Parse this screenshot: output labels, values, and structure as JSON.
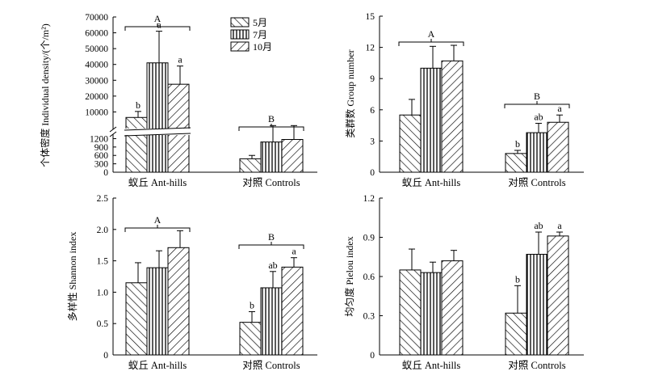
{
  "chart_data": [
    {
      "id": "density",
      "type": "bar",
      "ylabel": "个体密度 Individual density/(个/m²)",
      "categories": [
        "蚁丘 Ant-hills",
        "对照 Controls"
      ],
      "axis_break": true,
      "lower_ticks": [
        "0",
        "300",
        "600",
        "900",
        "1200"
      ],
      "upper_ticks": [
        "10000",
        "20000",
        "30000",
        "40000",
        "50000",
        "60000",
        "70000"
      ],
      "lower_range": [
        0,
        1300
      ],
      "upper_range": [
        0,
        70000
      ],
      "series": [
        {
          "name": "5月",
          "values": [
            6500,
            480
          ],
          "errors": [
            3800,
            120
          ],
          "letters": [
            "b",
            ""
          ]
        },
        {
          "name": "7月",
          "values": [
            41000,
            1080
          ],
          "errors": [
            20000,
            300
          ],
          "letters": [
            "a",
            ""
          ]
        },
        {
          "name": "10月",
          "values": [
            27500,
            1170
          ],
          "errors": [
            11500,
            200
          ],
          "letters": [
            "a",
            ""
          ]
        }
      ],
      "groups": [
        {
          "label": "A",
          "category": 0
        },
        {
          "label": "B",
          "category": 1
        }
      ],
      "legend": {
        "position": "top-center",
        "entries": [
          "5月",
          "7月",
          "10月"
        ]
      }
    },
    {
      "id": "groups",
      "type": "bar",
      "ylabel": "类群数 Group number",
      "categories": [
        "蚁丘 Ant-hills",
        "对照 Controls"
      ],
      "ylim": [
        0,
        15
      ],
      "ticks": [
        "0",
        "3",
        "6",
        "9",
        "12",
        "15"
      ],
      "series": [
        {
          "name": "5月",
          "values": [
            5.5,
            1.8
          ],
          "errors": [
            1.5,
            0.3
          ],
          "letters": [
            "",
            "b"
          ]
        },
        {
          "name": "7月",
          "values": [
            10.0,
            3.8
          ],
          "errors": [
            2.1,
            0.9
          ],
          "letters": [
            "",
            "ab"
          ]
        },
        {
          "name": "10月",
          "values": [
            10.7,
            4.8
          ],
          "errors": [
            1.5,
            0.7
          ],
          "letters": [
            "",
            "a"
          ]
        }
      ],
      "groups": [
        {
          "label": "A",
          "category": 0
        },
        {
          "label": "B",
          "category": 1
        }
      ]
    },
    {
      "id": "shannon",
      "type": "bar",
      "ylabel": "多样性 Shannon index",
      "categories": [
        "蚁丘 Ant-hills",
        "对照 Controls"
      ],
      "ylim": [
        0,
        2.5
      ],
      "ticks": [
        "0",
        "0.5",
        "1.0",
        "1.5",
        "2.0",
        "2.5"
      ],
      "series": [
        {
          "name": "5月",
          "values": [
            1.15,
            0.52
          ],
          "errors": [
            0.32,
            0.17
          ],
          "letters": [
            "",
            "b"
          ]
        },
        {
          "name": "7月",
          "values": [
            1.39,
            1.07
          ],
          "errors": [
            0.27,
            0.26
          ],
          "letters": [
            "",
            "ab"
          ]
        },
        {
          "name": "10月",
          "values": [
            1.71,
            1.4
          ],
          "errors": [
            0.27,
            0.15
          ],
          "letters": [
            "",
            "a"
          ]
        }
      ],
      "groups": [
        {
          "label": "A",
          "category": 0
        },
        {
          "label": "B",
          "category": 1
        }
      ]
    },
    {
      "id": "pielou",
      "type": "bar",
      "ylabel": "均匀度 Pielou index",
      "categories": [
        "蚁丘 Ant-hills",
        "对照 Controls"
      ],
      "ylim": [
        0,
        1.2
      ],
      "ticks": [
        "0",
        "0.3",
        "0.6",
        "0.9",
        "1.2"
      ],
      "series": [
        {
          "name": "5月",
          "values": [
            0.65,
            0.32
          ],
          "errors": [
            0.16,
            0.21
          ],
          "letters": [
            "",
            "b"
          ]
        },
        {
          "name": "7月",
          "values": [
            0.63,
            0.77
          ],
          "errors": [
            0.08,
            0.17
          ],
          "letters": [
            "",
            "ab"
          ]
        },
        {
          "name": "10月",
          "values": [
            0.72,
            0.91
          ],
          "errors": [
            0.08,
            0.03
          ],
          "letters": [
            "",
            "a"
          ]
        }
      ],
      "groups": []
    }
  ]
}
